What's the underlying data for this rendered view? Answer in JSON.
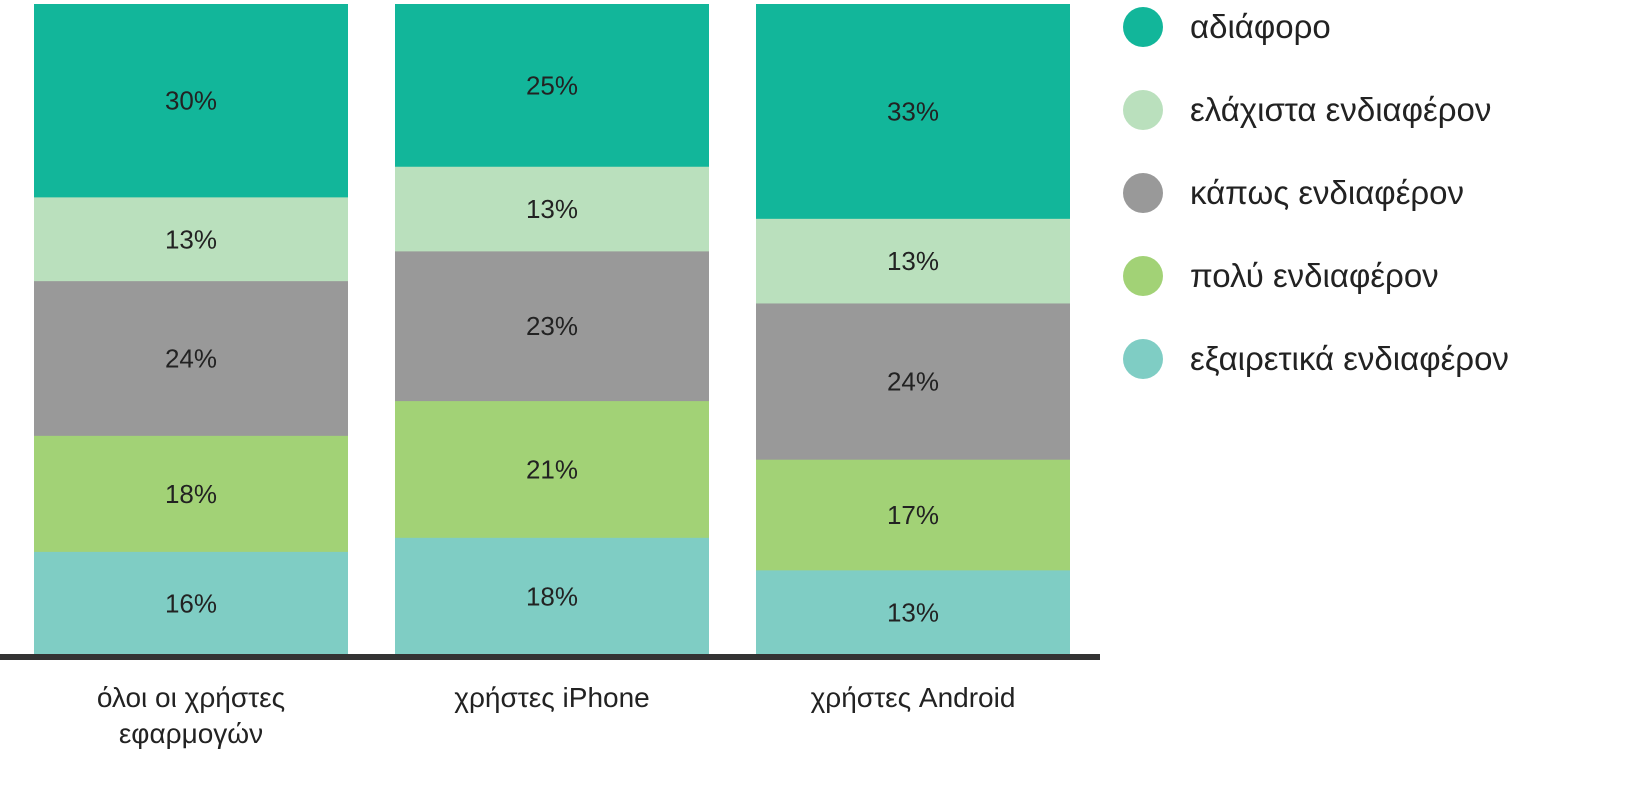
{
  "chart_data": {
    "type": "bar",
    "stacked": true,
    "normalized": true,
    "categories": [
      [
        "όλοι οι χρήστες",
        "εφαρμογών"
      ],
      [
        "χρήστες iPhone"
      ],
      [
        "χρήστες Android"
      ]
    ],
    "series": [
      {
        "name": "αδιάφορο",
        "color": "#12b69a",
        "values": [
          30,
          25,
          33
        ],
        "labels": [
          "30%",
          "25%",
          "33%"
        ]
      },
      {
        "name": "ελάχιστα ενδιαφέρον",
        "color": "#bae0bd",
        "values": [
          13,
          13,
          13
        ],
        "labels": [
          "13%",
          "13%",
          "13%"
        ]
      },
      {
        "name": "κάπως ενδιαφέρον",
        "color": "#999999",
        "values": [
          24,
          23,
          24
        ],
        "labels": [
          "24%",
          "23%",
          "24%"
        ]
      },
      {
        "name": "πολύ ενδιαφέρον",
        "color": "#a2d276",
        "values": [
          18,
          21,
          17
        ],
        "labels": [
          "18%",
          "21%",
          "17%"
        ]
      },
      {
        "name": "εξαιρετικά ενδιαφέρον",
        "color": "#7fcdc4",
        "values": [
          16,
          18,
          13
        ],
        "labels": [
          "16%",
          "18%",
          "13%"
        ]
      }
    ],
    "ylim": [
      0,
      100
    ],
    "title": "",
    "xlabel": "",
    "ylabel": "",
    "grid": false,
    "legend_position": "right",
    "axis_color": "#333333"
  }
}
